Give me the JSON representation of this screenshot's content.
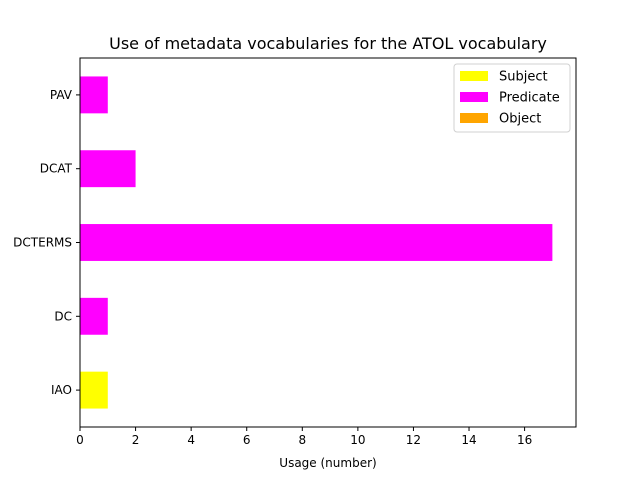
{
  "chart_data": {
    "type": "bar",
    "orientation": "horizontal",
    "stacked": true,
    "title": "Use of metadata vocabularies for the ATOL vocabulary",
    "xlabel": "Usage (number)",
    "ylabel": "",
    "categories": [
      "IAO",
      "DC",
      "DCTERMS",
      "DCAT",
      "PAV"
    ],
    "series": [
      {
        "name": "Subject",
        "color": "#ffff00",
        "values": [
          1,
          0,
          0,
          0,
          0
        ]
      },
      {
        "name": "Predicate",
        "color": "#ff00ff",
        "values": [
          0,
          1,
          17,
          2,
          1
        ]
      },
      {
        "name": "Object",
        "color": "#ffa500",
        "values": [
          0,
          0,
          0,
          0,
          0
        ]
      }
    ],
    "xlim": [
      0,
      17.85
    ],
    "xticks": [
      0,
      2,
      4,
      6,
      8,
      10,
      12,
      14,
      16
    ],
    "grid": false,
    "legend_position": "top-right"
  }
}
